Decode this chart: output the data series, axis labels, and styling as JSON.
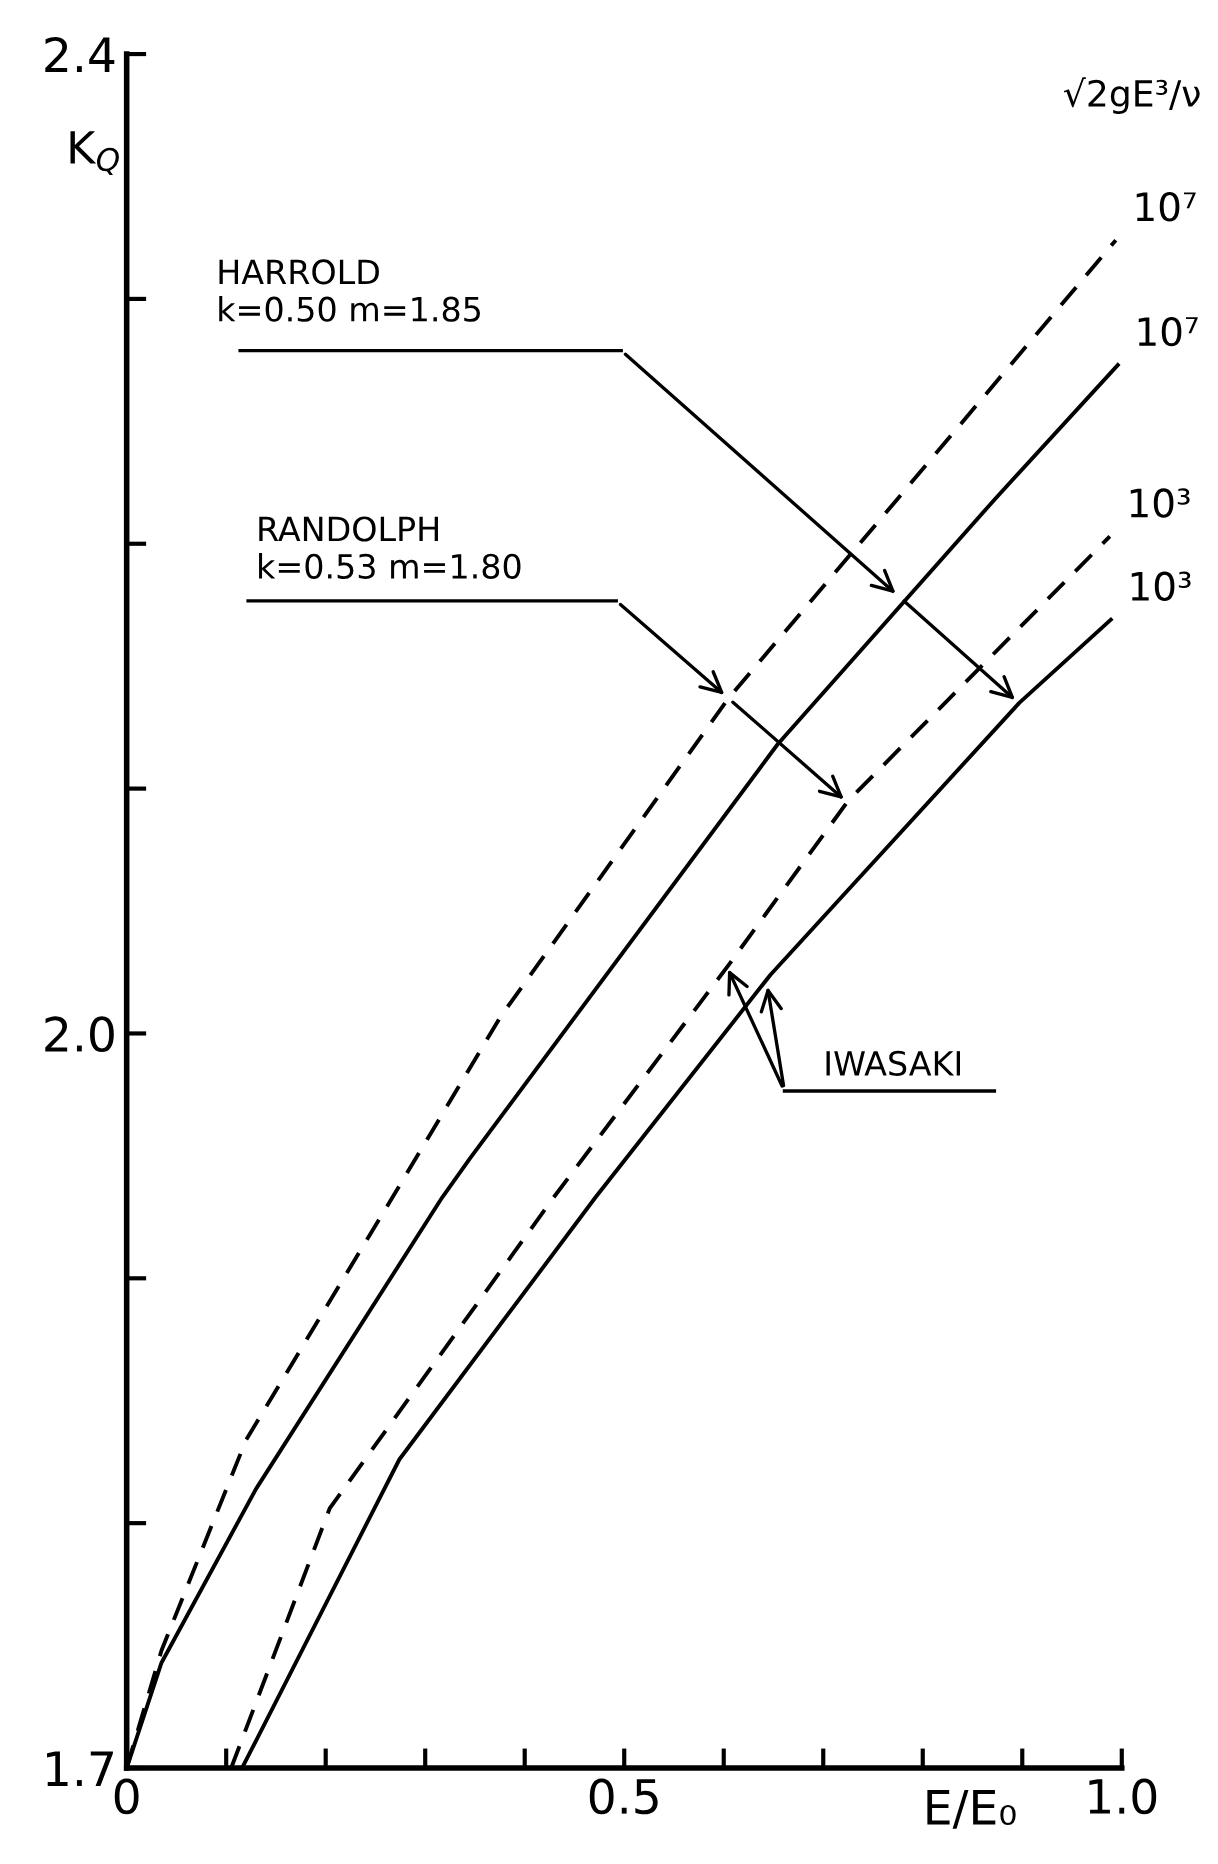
{
  "chart_data": {
    "type": "line",
    "xlabel": "E/E₀",
    "ylabel": "K$_{Q}$",
    "legend_title": "√2gE³/ν",
    "xlim": [
      0,
      1.0
    ],
    "ylim": [
      1.7,
      2.4
    ],
    "xticks": [
      0,
      {
        "value": 0.1,
        "label": null
      },
      {
        "value": 0.2,
        "label": null
      },
      {
        "value": 0.3,
        "label": null
      },
      {
        "value": 0.4,
        "label": null
      },
      0.5,
      {
        "value": 0.6,
        "label": null
      },
      {
        "value": 0.7,
        "label": null
      },
      {
        "value": 0.8,
        "label": null
      },
      {
        "value": 0.9,
        "label": null
      },
      {
        "value": 1.0,
        "label": "1.0"
      }
    ],
    "yticks": [
      1.7,
      {
        "value": 1.8,
        "label": null
      },
      {
        "value": 1.9,
        "label": null
      },
      {
        "value": 2.0,
        "label": "2.0"
      },
      {
        "value": 2.1,
        "label": null
      },
      {
        "value": 2.2,
        "label": null
      },
      {
        "value": 2.3,
        "label": null
      },
      2.4
    ],
    "grid": false,
    "marker": "none",
    "series": [
      {
        "name": "10⁷",
        "color": "#000000",
        "line_style": "dashed",
        "x": [
          0,
          0.035,
          0.12,
          0.267,
          0.376,
          0.605,
          0.774,
          0.994
        ],
        "values": [
          1.7,
          1.748,
          1.834,
          1.933,
          2.007,
          2.137,
          2.218,
          2.324
        ]
      },
      {
        "name": "10⁷",
        "color": "#000000",
        "line_style": "solid",
        "x": [
          0,
          0.035,
          0.13,
          0.317,
          0.345,
          0.654,
          0.872,
          0.996
        ],
        "values": [
          1.7,
          1.743,
          1.814,
          1.933,
          1.949,
          2.118,
          2.218,
          2.273
        ]
      },
      {
        "name": "10³",
        "color": "#000000",
        "line_style": "dashed",
        "x": [
          0.105,
          0.204,
          0.429,
          0.605,
          0.725,
          0.988
        ],
        "values": [
          1.7,
          1.806,
          1.933,
          2.028,
          2.095,
          2.203
        ]
      },
      {
        "name": "10³",
        "color": "#000000",
        "line_style": "solid",
        "x": [
          0.116,
          0.274,
          0.471,
          0.647,
          0.897,
          0.989
        ],
        "values": [
          1.7,
          1.826,
          1.933,
          2.024,
          2.135,
          2.169
        ]
      }
    ],
    "annotations": [
      "HARROLD\nk=0.50 m=1.85",
      "RANDOLPH\nk=0.53 m=1.80",
      "IWASAKI"
    ]
  }
}
